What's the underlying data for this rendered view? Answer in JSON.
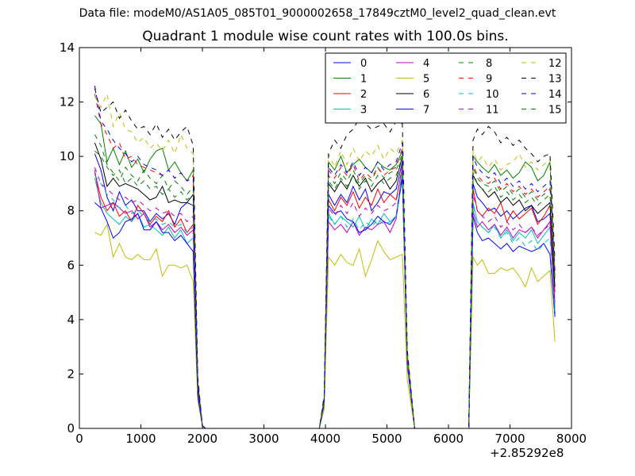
{
  "suptitle": "Data file: modeM0/AS1A05_085T01_9000002658_17849cztM0_level2_quad_clean.evt",
  "chart_data": {
    "type": "line",
    "title": "Quadrant 1 module wise count rates with 100.0s bins.",
    "xlabel": "",
    "ylabel": "",
    "x_offset_label": "+2.85292e8",
    "xlim": [
      0,
      8000
    ],
    "ylim": [
      0,
      14
    ],
    "x_ticks": [
      0,
      1000,
      2000,
      3000,
      4000,
      5000,
      6000,
      7000,
      8000
    ],
    "y_ticks": [
      0,
      2,
      4,
      6,
      8,
      10,
      12,
      14
    ],
    "grid": false,
    "legend": {
      "position": "top-right",
      "columns": 4
    },
    "x": [
      250,
      350,
      450,
      550,
      650,
      750,
      850,
      950,
      1050,
      1150,
      1250,
      1350,
      1450,
      1550,
      1650,
      1750,
      1850,
      1925,
      2000,
      2050,
      3900,
      3980,
      4050,
      4150,
      4250,
      4350,
      4450,
      4550,
      4650,
      4750,
      4850,
      4950,
      5050,
      5150,
      5250,
      5330,
      5450,
      6330,
      6400,
      6470,
      6550,
      6650,
      6750,
      6850,
      6950,
      7050,
      7150,
      7250,
      7350,
      7450,
      7550,
      7650,
      7730
    ],
    "series": [
      {
        "name": "0",
        "color": "#0000ff",
        "dash": "solid",
        "values": [
          10.1,
          9.5,
          8.5,
          8.0,
          8.7,
          8.2,
          8.4,
          8.0,
          8.0,
          7.6,
          7.9,
          7.7,
          7.9,
          7.5,
          8.1,
          8.3,
          8.2,
          1.5,
          0.1,
          0.0,
          0.0,
          1.0,
          8.6,
          8.2,
          8.6,
          8.3,
          8.9,
          8.4,
          8.8,
          8.0,
          8.3,
          8.7,
          8.6,
          8.8,
          9.8,
          2.6,
          0.0,
          0.0,
          9.0,
          8.5,
          8.3,
          8.0,
          8.1,
          7.8,
          8.0,
          7.7,
          7.9,
          8.1,
          8.2,
          7.6,
          7.7,
          7.9,
          4.2
        ]
      },
      {
        "name": "1",
        "color": "#008000",
        "dash": "solid",
        "values": [
          11.5,
          11.2,
          9.8,
          10.3,
          9.7,
          10.2,
          9.6,
          9.9,
          9.4,
          9.9,
          10.2,
          10.3,
          9.5,
          9.8,
          9.4,
          9.1,
          9.5,
          1.5,
          0.1,
          0.0,
          0.0,
          1.0,
          9.8,
          9.5,
          10.0,
          9.4,
          9.7,
          9.9,
          9.6,
          9.4,
          9.8,
          9.6,
          9.5,
          9.7,
          10.2,
          2.6,
          0.0,
          0.0,
          10.0,
          9.8,
          9.6,
          9.4,
          9.7,
          9.3,
          9.5,
          9.2,
          9.4,
          9.8,
          9.6,
          9.1,
          9.3,
          9.8,
          5.5
        ]
      },
      {
        "name": "2",
        "color": "#ff0000",
        "dash": "solid",
        "values": [
          9.4,
          8.5,
          8.0,
          8.3,
          7.8,
          8.0,
          7.6,
          8.2,
          7.9,
          7.5,
          7.8,
          7.6,
          8.0,
          7.4,
          7.7,
          7.2,
          7.5,
          1.4,
          0.1,
          0.0,
          0.0,
          1.0,
          8.4,
          8.0,
          8.5,
          8.2,
          8.7,
          8.1,
          8.5,
          8.2,
          8.8,
          8.3,
          8.6,
          8.4,
          9.6,
          2.5,
          0.0,
          0.0,
          8.8,
          8.0,
          7.8,
          8.1,
          7.9,
          8.3,
          7.6,
          8.0,
          7.7,
          7.9,
          8.1,
          7.5,
          7.8,
          8.2,
          5.0
        ]
      },
      {
        "name": "3",
        "color": "#00bfbf",
        "dash": "solid",
        "values": [
          9.2,
          8.3,
          7.9,
          7.7,
          7.5,
          7.8,
          7.6,
          7.9,
          7.4,
          7.5,
          7.3,
          7.1,
          7.4,
          7.0,
          7.3,
          6.8,
          7.0,
          1.3,
          0.1,
          0.0,
          0.0,
          0.9,
          7.9,
          7.5,
          7.8,
          7.6,
          7.4,
          7.8,
          7.3,
          7.7,
          7.5,
          7.9,
          7.6,
          7.8,
          9.5,
          2.4,
          0.0,
          0.0,
          8.3,
          7.6,
          7.4,
          7.2,
          7.5,
          7.0,
          7.3,
          6.9,
          7.2,
          7.0,
          7.3,
          6.8,
          7.1,
          7.4,
          4.4
        ]
      },
      {
        "name": "4",
        "color": "#bf00bf",
        "dash": "solid",
        "values": [
          9.5,
          8.1,
          8.2,
          8.3,
          8.1,
          7.9,
          8.0,
          7.7,
          7.9,
          7.4,
          7.6,
          7.3,
          7.5,
          7.2,
          7.4,
          7.1,
          7.3,
          1.3,
          0.1,
          0.0,
          0.0,
          0.9,
          7.6,
          7.3,
          7.5,
          7.2,
          7.6,
          7.1,
          7.4,
          7.3,
          7.5,
          7.6,
          7.2,
          7.7,
          9.4,
          2.3,
          0.0,
          0.0,
          8.0,
          7.4,
          7.6,
          7.3,
          7.5,
          7.1,
          7.4,
          7.0,
          7.3,
          7.2,
          7.4,
          7.0,
          7.3,
          7.6,
          4.6
        ]
      },
      {
        "name": "5",
        "color": "#bfbf00",
        "dash": "solid",
        "values": [
          7.2,
          7.1,
          7.5,
          6.3,
          6.8,
          6.3,
          6.2,
          6.4,
          6.2,
          6.2,
          6.6,
          5.6,
          6.0,
          6.0,
          5.9,
          6.0,
          5.4,
          1.0,
          0.1,
          0.0,
          0.0,
          0.7,
          6.3,
          6.0,
          6.4,
          6.1,
          6.0,
          6.6,
          5.6,
          6.2,
          6.9,
          6.5,
          6.2,
          6.3,
          6.4,
          1.8,
          0.0,
          0.0,
          6.3,
          6.0,
          6.2,
          5.7,
          5.7,
          5.9,
          5.8,
          5.9,
          5.6,
          5.2,
          5.9,
          5.4,
          5.6,
          5.8,
          3.2
        ]
      },
      {
        "name": "6",
        "color": "#000000",
        "dash": "solid",
        "values": [
          10.5,
          9.9,
          8.9,
          9.2,
          8.9,
          9.0,
          8.9,
          8.8,
          8.6,
          8.4,
          8.5,
          8.9,
          8.3,
          8.4,
          8.3,
          8.3,
          8.6,
          1.5,
          0.1,
          0.0,
          0.0,
          1.0,
          9.0,
          8.7,
          9.1,
          8.8,
          9.3,
          8.9,
          9.2,
          8.7,
          9.0,
          9.2,
          8.8,
          9.1,
          10.0,
          2.6,
          0.0,
          0.0,
          9.3,
          9.0,
          8.8,
          8.5,
          8.7,
          8.3,
          8.5,
          8.2,
          8.4,
          8.0,
          8.2,
          7.9,
          8.1,
          8.3,
          5.2
        ]
      },
      {
        "name": "7",
        "color": "#0000ff",
        "dash": "solid",
        "values": [
          8.3,
          8.1,
          7.6,
          7.0,
          7.2,
          7.6,
          7.7,
          7.9,
          7.3,
          7.3,
          7.6,
          7.2,
          7.2,
          6.9,
          7.1,
          6.8,
          6.5,
          1.2,
          0.1,
          0.0,
          0.0,
          0.9,
          8.2,
          7.9,
          8.0,
          7.7,
          7.6,
          7.2,
          7.3,
          7.5,
          7.8,
          7.6,
          7.5,
          7.8,
          9.2,
          2.4,
          0.0,
          0.0,
          7.8,
          7.2,
          6.9,
          7.0,
          6.8,
          6.6,
          6.8,
          6.5,
          6.7,
          6.6,
          6.5,
          6.6,
          6.8,
          6.4,
          4.1
        ]
      },
      {
        "name": "8",
        "color": "#008000",
        "dash": "dashed",
        "values": [
          10.8,
          10.4,
          9.7,
          9.4,
          9.1,
          9.6,
          9.3,
          9.1,
          9.5,
          9.2,
          9.0,
          9.3,
          8.8,
          9.1,
          8.9,
          8.6,
          8.9,
          1.6,
          0.1,
          0.0,
          0.0,
          1.1,
          9.3,
          9.0,
          9.4,
          9.1,
          9.5,
          9.0,
          9.3,
          9.1,
          9.6,
          9.2,
          9.4,
          9.5,
          10.1,
          2.7,
          0.0,
          0.0,
          9.6,
          9.2,
          9.0,
          8.9,
          9.1,
          8.7,
          8.9,
          8.6,
          8.8,
          8.5,
          8.7,
          8.4,
          8.6,
          8.8,
          5.5
        ]
      },
      {
        "name": "9",
        "color": "#ff0000",
        "dash": "dashed",
        "values": [
          12.3,
          11.2,
          10.8,
          10.3,
          10.5,
          9.9,
          10.0,
          9.7,
          9.6,
          9.5,
          9.4,
          9.3,
          9.5,
          9.2,
          9.4,
          9.1,
          9.3,
          1.7,
          0.1,
          0.0,
          0.0,
          1.1,
          9.5,
          9.2,
          9.6,
          9.3,
          9.7,
          9.1,
          9.4,
          9.2,
          9.6,
          9.3,
          9.5,
          9.6,
          10.3,
          2.7,
          0.0,
          0.0,
          9.7,
          9.3,
          9.1,
          9.0,
          9.2,
          8.8,
          9.0,
          8.7,
          8.9,
          8.6,
          8.8,
          8.5,
          8.7,
          8.9,
          5.7
        ]
      },
      {
        "name": "10",
        "color": "#00bfbf",
        "dash": "dashed",
        "values": [
          9.3,
          9.0,
          8.6,
          8.4,
          8.1,
          8.2,
          7.9,
          8.0,
          7.8,
          7.6,
          7.7,
          7.5,
          7.6,
          7.4,
          7.5,
          7.2,
          7.4,
          1.4,
          0.1,
          0.0,
          0.0,
          0.9,
          7.8,
          7.5,
          7.8,
          7.4,
          7.7,
          7.3,
          7.6,
          7.4,
          7.7,
          7.5,
          7.6,
          7.8,
          9.4,
          2.4,
          0.0,
          0.0,
          8.2,
          7.6,
          7.4,
          7.2,
          7.4,
          7.0,
          7.2,
          6.8,
          7.0,
          6.7,
          6.9,
          6.5,
          6.8,
          7.0,
          4.3
        ]
      },
      {
        "name": "11",
        "color": "#bf00bf",
        "dash": "dashed",
        "values": [
          9.6,
          9.0,
          8.8,
          8.6,
          8.4,
          8.5,
          8.3,
          8.4,
          8.2,
          8.0,
          8.1,
          7.9,
          8.0,
          7.8,
          7.9,
          7.6,
          7.8,
          1.4,
          0.1,
          0.0,
          0.0,
          1.0,
          8.1,
          7.8,
          8.2,
          7.9,
          8.3,
          7.8,
          8.1,
          7.9,
          8.2,
          8.0,
          8.1,
          8.3,
          9.7,
          2.5,
          0.0,
          0.0,
          8.6,
          8.0,
          7.8,
          7.6,
          7.8,
          7.4,
          7.6,
          7.3,
          7.5,
          7.2,
          7.4,
          7.1,
          7.3,
          7.5,
          4.6
        ]
      },
      {
        "name": "12",
        "color": "#bfbf00",
        "dash": "dashed",
        "values": [
          12.2,
          11.8,
          12.3,
          11.1,
          11.6,
          11.0,
          10.9,
          10.5,
          10.7,
          10.3,
          10.5,
          10.2,
          10.6,
          10.1,
          10.8,
          10.3,
          10.1,
          1.8,
          0.1,
          0.0,
          0.0,
          1.2,
          10.1,
          9.6,
          10.2,
          9.7,
          10.3,
          9.8,
          10.2,
          10.0,
          10.4,
          9.9,
          10.3,
          10.1,
          10.6,
          2.9,
          0.0,
          0.0,
          10.2,
          9.8,
          10.0,
          9.6,
          9.9,
          9.5,
          9.7,
          9.8,
          10.1,
          9.6,
          9.8,
          9.5,
          9.7,
          9.9,
          6.0
        ]
      },
      {
        "name": "13",
        "color": "#000000",
        "dash": "dashed",
        "values": [
          12.5,
          11.6,
          11.8,
          12.0,
          11.4,
          11.7,
          11.3,
          11.0,
          11.1,
          10.8,
          11.2,
          10.7,
          11.0,
          10.6,
          10.9,
          11.1,
          10.4,
          1.9,
          0.1,
          0.0,
          0.0,
          1.2,
          10.1,
          10.6,
          10.3,
          10.8,
          11.0,
          11.4,
          11.2,
          11.0,
          11.1,
          11.2,
          10.9,
          11.3,
          11.2,
          2.9,
          0.0,
          0.0,
          10.6,
          11.0,
          10.8,
          11.1,
          10.9,
          10.5,
          10.7,
          10.4,
          10.6,
          10.3,
          10.1,
          9.8,
          10.0,
          10.1,
          6.2
        ]
      },
      {
        "name": "14",
        "color": "#0000ff",
        "dash": "dashed",
        "values": [
          12.6,
          11.3,
          11.0,
          10.6,
          10.3,
          10.1,
          9.8,
          10.0,
          9.7,
          9.6,
          9.5,
          9.3,
          9.5,
          9.2,
          9.4,
          9.1,
          9.2,
          1.7,
          0.1,
          0.0,
          0.0,
          1.1,
          9.6,
          9.3,
          9.7,
          9.4,
          9.8,
          9.3,
          9.6,
          9.4,
          9.8,
          9.5,
          9.7,
          9.8,
          10.5,
          2.8,
          0.0,
          0.0,
          10.0,
          9.6,
          9.4,
          9.2,
          9.4,
          9.0,
          9.2,
          8.9,
          9.1,
          8.8,
          9.0,
          8.7,
          8.9,
          9.1,
          5.8
        ]
      },
      {
        "name": "15",
        "color": "#008000",
        "dash": "dashed",
        "values": [
          10.2,
          10.0,
          9.6,
          9.3,
          9.5,
          9.0,
          9.2,
          8.9,
          9.1,
          8.8,
          8.9,
          8.6,
          8.8,
          8.5,
          8.7,
          8.4,
          8.6,
          1.6,
          0.1,
          0.0,
          0.0,
          1.0,
          9.1,
          8.8,
          9.2,
          8.9,
          9.3,
          8.8,
          9.1,
          8.9,
          9.3,
          9.0,
          9.2,
          9.3,
          10.0,
          2.6,
          0.0,
          0.0,
          9.4,
          9.0,
          8.8,
          8.7,
          8.9,
          8.5,
          8.7,
          8.4,
          8.6,
          8.3,
          8.5,
          8.2,
          8.4,
          8.6,
          5.4
        ]
      }
    ]
  }
}
